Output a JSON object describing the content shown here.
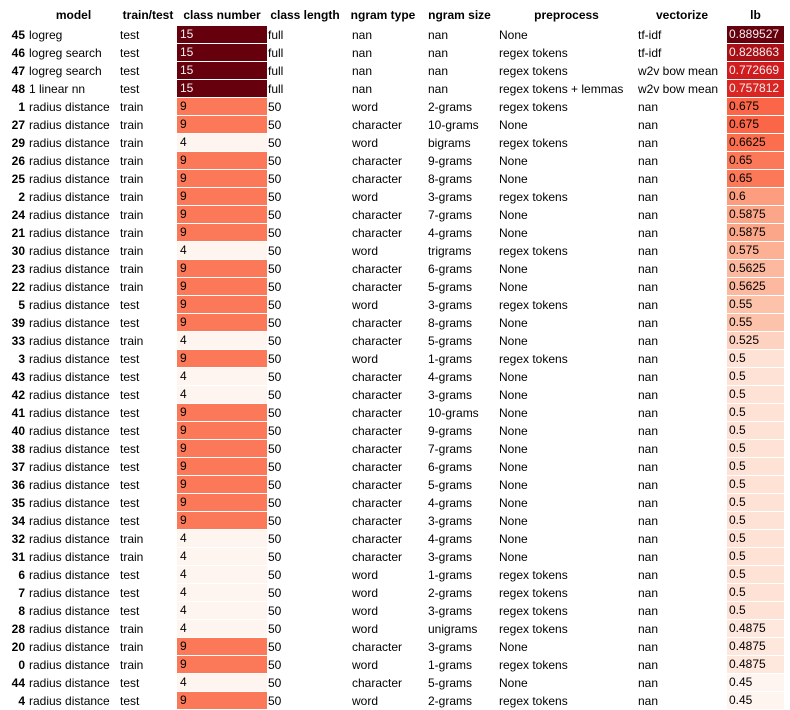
{
  "headers": [
    "model",
    "train/test",
    "class number",
    "class length",
    "ngram type",
    "ngram size",
    "preprocess",
    "vectorize",
    "lb"
  ],
  "colors": {
    "cn": {
      "15": "#67000d",
      "9": "#fb7858",
      "4": "#fff5f0"
    },
    "lb_scale": [
      "#fff5f0",
      "#fee0d2",
      "#fcbba1",
      "#fc9272",
      "#fb6a4a",
      "#ef3b2c",
      "#cb181d",
      "#a50f15",
      "#67000d"
    ]
  },
  "rows": [
    {
      "idx": "45",
      "model": "logreg",
      "tt": "test",
      "cn": "15",
      "cl": "full",
      "nt": "nan",
      "ns": "nan",
      "pp": "None",
      "vz": "tf-idf",
      "lb": "0.889527"
    },
    {
      "idx": "46",
      "model": "logreg search",
      "tt": "test",
      "cn": "15",
      "cl": "full",
      "nt": "nan",
      "ns": "nan",
      "pp": "regex tokens",
      "vz": "tf-idf",
      "lb": "0.828863"
    },
    {
      "idx": "47",
      "model": "logreg search",
      "tt": "test",
      "cn": "15",
      "cl": "full",
      "nt": "nan",
      "ns": "nan",
      "pp": "regex tokens",
      "vz": "w2v bow mean",
      "lb": "0.772669"
    },
    {
      "idx": "48",
      "model": "1 linear nn",
      "tt": "test",
      "cn": "15",
      "cl": "full",
      "nt": "nan",
      "ns": "nan",
      "pp": "regex tokens + lemmas",
      "vz": "w2v bow mean",
      "lb": "0.757812"
    },
    {
      "idx": "1",
      "model": "radius distance",
      "tt": "train",
      "cn": "9",
      "cl": "50",
      "nt": "word",
      "ns": "2-grams",
      "pp": "regex tokens",
      "vz": "nan",
      "lb": "0.675"
    },
    {
      "idx": "27",
      "model": "radius distance",
      "tt": "train",
      "cn": "9",
      "cl": "50",
      "nt": "character",
      "ns": "10-grams",
      "pp": "None",
      "vz": "nan",
      "lb": "0.675"
    },
    {
      "idx": "29",
      "model": "radius distance",
      "tt": "train",
      "cn": "4",
      "cl": "50",
      "nt": "word",
      "ns": "bigrams",
      "pp": "regex tokens",
      "vz": "nan",
      "lb": "0.6625"
    },
    {
      "idx": "26",
      "model": "radius distance",
      "tt": "train",
      "cn": "9",
      "cl": "50",
      "nt": "character",
      "ns": "9-grams",
      "pp": "None",
      "vz": "nan",
      "lb": "0.65"
    },
    {
      "idx": "25",
      "model": "radius distance",
      "tt": "train",
      "cn": "9",
      "cl": "50",
      "nt": "character",
      "ns": "8-grams",
      "pp": "None",
      "vz": "nan",
      "lb": "0.65"
    },
    {
      "idx": "2",
      "model": "radius distance",
      "tt": "train",
      "cn": "9",
      "cl": "50",
      "nt": "word",
      "ns": "3-grams",
      "pp": "regex tokens",
      "vz": "nan",
      "lb": "0.6"
    },
    {
      "idx": "24",
      "model": "radius distance",
      "tt": "train",
      "cn": "9",
      "cl": "50",
      "nt": "character",
      "ns": "7-grams",
      "pp": "None",
      "vz": "nan",
      "lb": "0.5875"
    },
    {
      "idx": "21",
      "model": "radius distance",
      "tt": "train",
      "cn": "9",
      "cl": "50",
      "nt": "character",
      "ns": "4-grams",
      "pp": "None",
      "vz": "nan",
      "lb": "0.5875"
    },
    {
      "idx": "30",
      "model": "radius distance",
      "tt": "train",
      "cn": "4",
      "cl": "50",
      "nt": "word",
      "ns": "trigrams",
      "pp": "regex tokens",
      "vz": "nan",
      "lb": "0.575"
    },
    {
      "idx": "23",
      "model": "radius distance",
      "tt": "train",
      "cn": "9",
      "cl": "50",
      "nt": "character",
      "ns": "6-grams",
      "pp": "None",
      "vz": "nan",
      "lb": "0.5625"
    },
    {
      "idx": "22",
      "model": "radius distance",
      "tt": "train",
      "cn": "9",
      "cl": "50",
      "nt": "character",
      "ns": "5-grams",
      "pp": "None",
      "vz": "nan",
      "lb": "0.5625"
    },
    {
      "idx": "5",
      "model": "radius distance",
      "tt": "test",
      "cn": "9",
      "cl": "50",
      "nt": "word",
      "ns": "3-grams",
      "pp": "regex tokens",
      "vz": "nan",
      "lb": "0.55"
    },
    {
      "idx": "39",
      "model": "radius distance",
      "tt": "test",
      "cn": "9",
      "cl": "50",
      "nt": "character",
      "ns": "8-grams",
      "pp": "None",
      "vz": "nan",
      "lb": "0.55"
    },
    {
      "idx": "33",
      "model": "radius distance",
      "tt": "train",
      "cn": "4",
      "cl": "50",
      "nt": "character",
      "ns": "5-grams",
      "pp": "None",
      "vz": "nan",
      "lb": "0.525"
    },
    {
      "idx": "3",
      "model": "radius distance",
      "tt": "test",
      "cn": "9",
      "cl": "50",
      "nt": "word",
      "ns": "1-grams",
      "pp": "regex tokens",
      "vz": "nan",
      "lb": "0.5"
    },
    {
      "idx": "43",
      "model": "radius distance",
      "tt": "test",
      "cn": "4",
      "cl": "50",
      "nt": "character",
      "ns": "4-grams",
      "pp": "None",
      "vz": "nan",
      "lb": "0.5"
    },
    {
      "idx": "42",
      "model": "radius distance",
      "tt": "test",
      "cn": "4",
      "cl": "50",
      "nt": "character",
      "ns": "3-grams",
      "pp": "None",
      "vz": "nan",
      "lb": "0.5"
    },
    {
      "idx": "41",
      "model": "radius distance",
      "tt": "test",
      "cn": "9",
      "cl": "50",
      "nt": "character",
      "ns": "10-grams",
      "pp": "None",
      "vz": "nan",
      "lb": "0.5"
    },
    {
      "idx": "40",
      "model": "radius distance",
      "tt": "test",
      "cn": "9",
      "cl": "50",
      "nt": "character",
      "ns": "9-grams",
      "pp": "None",
      "vz": "nan",
      "lb": "0.5"
    },
    {
      "idx": "38",
      "model": "radius distance",
      "tt": "test",
      "cn": "9",
      "cl": "50",
      "nt": "character",
      "ns": "7-grams",
      "pp": "None",
      "vz": "nan",
      "lb": "0.5"
    },
    {
      "idx": "37",
      "model": "radius distance",
      "tt": "test",
      "cn": "9",
      "cl": "50",
      "nt": "character",
      "ns": "6-grams",
      "pp": "None",
      "vz": "nan",
      "lb": "0.5"
    },
    {
      "idx": "36",
      "model": "radius distance",
      "tt": "test",
      "cn": "9",
      "cl": "50",
      "nt": "character",
      "ns": "5-grams",
      "pp": "None",
      "vz": "nan",
      "lb": "0.5"
    },
    {
      "idx": "35",
      "model": "radius distance",
      "tt": "test",
      "cn": "9",
      "cl": "50",
      "nt": "character",
      "ns": "4-grams",
      "pp": "None",
      "vz": "nan",
      "lb": "0.5"
    },
    {
      "idx": "34",
      "model": "radius distance",
      "tt": "test",
      "cn": "9",
      "cl": "50",
      "nt": "character",
      "ns": "3-grams",
      "pp": "None",
      "vz": "nan",
      "lb": "0.5"
    },
    {
      "idx": "32",
      "model": "radius distance",
      "tt": "train",
      "cn": "4",
      "cl": "50",
      "nt": "character",
      "ns": "4-grams",
      "pp": "None",
      "vz": "nan",
      "lb": "0.5"
    },
    {
      "idx": "31",
      "model": "radius distance",
      "tt": "train",
      "cn": "4",
      "cl": "50",
      "nt": "character",
      "ns": "3-grams",
      "pp": "None",
      "vz": "nan",
      "lb": "0.5"
    },
    {
      "idx": "6",
      "model": "radius distance",
      "tt": "test",
      "cn": "4",
      "cl": "50",
      "nt": "word",
      "ns": "1-grams",
      "pp": "regex tokens",
      "vz": "nan",
      "lb": "0.5"
    },
    {
      "idx": "7",
      "model": "radius distance",
      "tt": "test",
      "cn": "4",
      "cl": "50",
      "nt": "word",
      "ns": "2-grams",
      "pp": "regex tokens",
      "vz": "nan",
      "lb": "0.5"
    },
    {
      "idx": "8",
      "model": "radius distance",
      "tt": "test",
      "cn": "4",
      "cl": "50",
      "nt": "word",
      "ns": "3-grams",
      "pp": "regex tokens",
      "vz": "nan",
      "lb": "0.5"
    },
    {
      "idx": "28",
      "model": "radius distance",
      "tt": "train",
      "cn": "4",
      "cl": "50",
      "nt": "word",
      "ns": "unigrams",
      "pp": "regex tokens",
      "vz": "nan",
      "lb": "0.4875"
    },
    {
      "idx": "20",
      "model": "radius distance",
      "tt": "train",
      "cn": "9",
      "cl": "50",
      "nt": "character",
      "ns": "3-grams",
      "pp": "None",
      "vz": "nan",
      "lb": "0.4875"
    },
    {
      "idx": "0",
      "model": "radius distance",
      "tt": "train",
      "cn": "9",
      "cl": "50",
      "nt": "word",
      "ns": "1-grams",
      "pp": "regex tokens",
      "vz": "nan",
      "lb": "0.4875"
    },
    {
      "idx": "44",
      "model": "radius distance",
      "tt": "test",
      "cn": "4",
      "cl": "50",
      "nt": "character",
      "ns": "5-grams",
      "pp": "None",
      "vz": "nan",
      "lb": "0.45"
    },
    {
      "idx": "4",
      "model": "radius distance",
      "tt": "test",
      "cn": "9",
      "cl": "50",
      "nt": "word",
      "ns": "2-grams",
      "pp": "regex tokens",
      "vz": "nan",
      "lb": "0.45"
    }
  ]
}
